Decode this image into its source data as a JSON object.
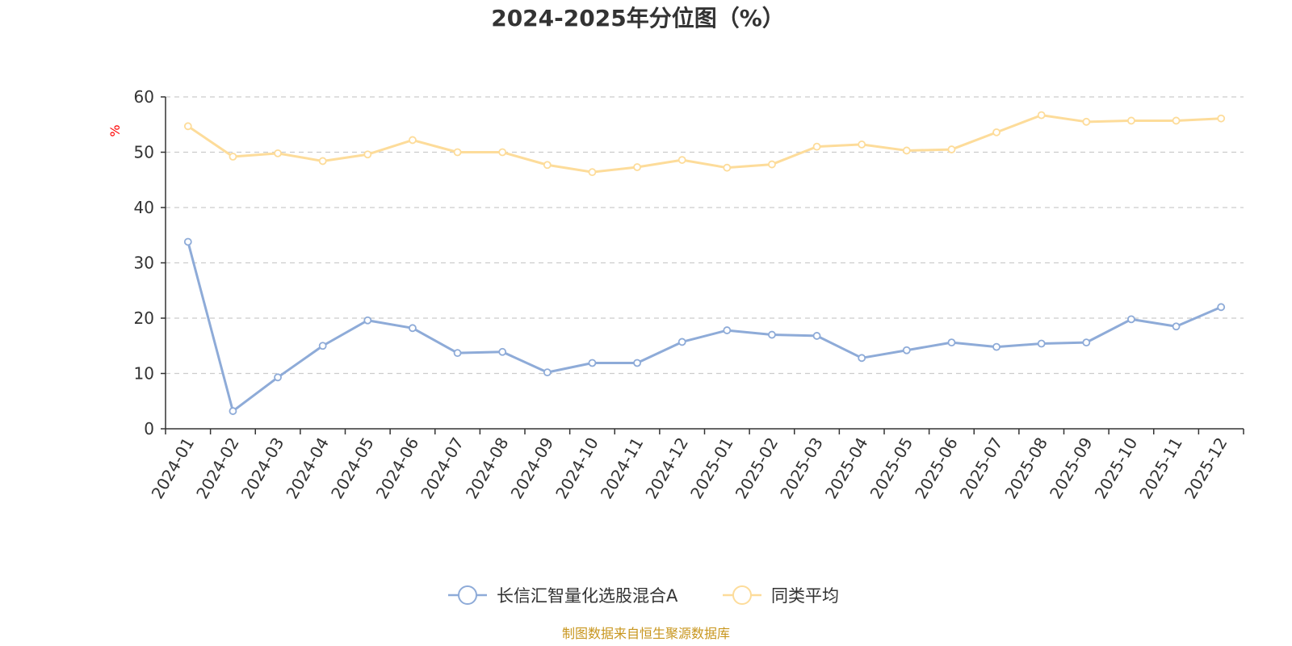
{
  "chart_data": {
    "type": "line",
    "title": "2024-2025年分位图（%）",
    "ylabel": "%",
    "xlabel": "",
    "ylim": [
      0,
      60
    ],
    "yticks": [
      0,
      10,
      20,
      30,
      40,
      50,
      60
    ],
    "grid": true,
    "legend_position": "bottom-center",
    "categories": [
      "2024-01",
      "2024-02",
      "2024-03",
      "2024-04",
      "2024-05",
      "2024-06",
      "2024-07",
      "2024-08",
      "2024-09",
      "2024-10",
      "2024-11",
      "2024-12",
      "2025-01",
      "2025-02",
      "2025-03",
      "2025-04",
      "2025-05",
      "2025-06",
      "2025-07",
      "2025-08",
      "2025-09",
      "2025-10",
      "2025-11",
      "2025-12"
    ],
    "series": [
      {
        "name": "长信汇智量化选股混合A",
        "color": "#8eabd8",
        "values": [
          33.8,
          3.2,
          9.3,
          15.0,
          19.6,
          18.2,
          13.7,
          13.9,
          10.2,
          11.9,
          11.9,
          15.7,
          17.8,
          17.0,
          16.8,
          12.8,
          14.2,
          15.6,
          14.8,
          15.4,
          15.6,
          19.8,
          18.5,
          22.0
        ]
      },
      {
        "name": "同类平均",
        "color": "#fddc9a",
        "values": [
          54.7,
          49.2,
          49.8,
          48.4,
          49.6,
          52.2,
          50.0,
          50.0,
          47.7,
          46.4,
          47.3,
          48.6,
          47.2,
          47.8,
          51.0,
          51.4,
          50.3,
          50.5,
          53.6,
          56.7,
          55.5,
          55.7,
          55.7,
          56.1
        ]
      }
    ],
    "source": "制图数据来自恒生聚源数据库"
  },
  "colors": {
    "axis": "#333333",
    "grid": "#cccccc",
    "unit_label": "#ff0000",
    "source_text": "#c8961e"
  }
}
